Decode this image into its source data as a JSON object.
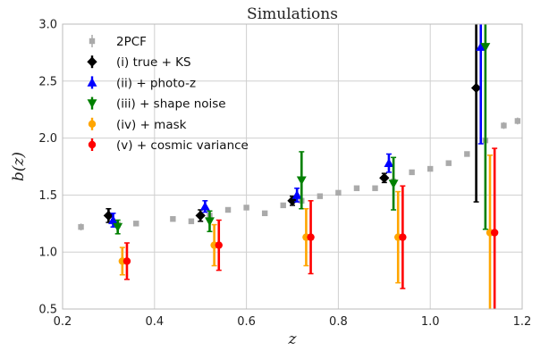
{
  "chart_data": {
    "type": "scatter",
    "title": "Simulations",
    "xlabel": "z",
    "ylabel": "b(z)",
    "xlim": [
      0.2,
      1.2
    ],
    "ylim": [
      0.5,
      3.0
    ],
    "xticks": [
      "0.2",
      "0.4",
      "0.6",
      "0.8",
      "1.0",
      "1.2"
    ],
    "yticks": [
      "0.5",
      "1.0",
      "1.5",
      "2.0",
      "2.5",
      "3.0"
    ],
    "grid": true,
    "legend_position": "top-left",
    "series": [
      {
        "name": "2PCF",
        "color": "#aaaaaa",
        "marker": "square",
        "points": [
          {
            "x": 0.24,
            "y": 1.22,
            "err": 0.03
          },
          {
            "x": 0.32,
            "y": 1.24,
            "err": 0.02
          },
          {
            "x": 0.36,
            "y": 1.25,
            "err": 0.02
          },
          {
            "x": 0.44,
            "y": 1.29,
            "err": 0.02
          },
          {
            "x": 0.48,
            "y": 1.27,
            "err": 0.02
          },
          {
            "x": 0.52,
            "y": 1.32,
            "err": 0.02
          },
          {
            "x": 0.56,
            "y": 1.37,
            "err": 0.02
          },
          {
            "x": 0.6,
            "y": 1.39,
            "err": 0.02
          },
          {
            "x": 0.64,
            "y": 1.34,
            "err": 0.02
          },
          {
            "x": 0.68,
            "y": 1.41,
            "err": 0.02
          },
          {
            "x": 0.72,
            "y": 1.45,
            "err": 0.02
          },
          {
            "x": 0.76,
            "y": 1.49,
            "err": 0.02
          },
          {
            "x": 0.8,
            "y": 1.52,
            "err": 0.02
          },
          {
            "x": 0.84,
            "y": 1.56,
            "err": 0.02
          },
          {
            "x": 0.88,
            "y": 1.56,
            "err": 0.02
          },
          {
            "x": 0.92,
            "y": 1.62,
            "err": 0.02
          },
          {
            "x": 0.96,
            "y": 1.7,
            "err": 0.02
          },
          {
            "x": 1.0,
            "y": 1.73,
            "err": 0.02
          },
          {
            "x": 1.04,
            "y": 1.78,
            "err": 0.02
          },
          {
            "x": 1.08,
            "y": 1.86,
            "err": 0.02
          },
          {
            "x": 1.12,
            "y": 1.98,
            "err": 0.03
          },
          {
            "x": 1.16,
            "y": 2.11,
            "err": 0.03
          },
          {
            "x": 1.19,
            "y": 2.15,
            "err": 0.03
          }
        ]
      },
      {
        "name": "(i) true + KS",
        "color": "#000000",
        "marker": "diamond",
        "points": [
          {
            "x": 0.3,
            "y": 1.32,
            "err": 0.06
          },
          {
            "x": 0.5,
            "y": 1.32,
            "err": 0.05
          },
          {
            "x": 0.7,
            "y": 1.45,
            "err": 0.04
          },
          {
            "x": 0.9,
            "y": 1.65,
            "err": 0.04
          },
          {
            "x": 1.1,
            "y": 2.44,
            "err": 1.0
          }
        ]
      },
      {
        "name": "(ii) + photo-z",
        "color": "#0000ff",
        "marker": "triangle-up",
        "points": [
          {
            "x": 0.31,
            "y": 1.28,
            "err": 0.06
          },
          {
            "x": 0.51,
            "y": 1.4,
            "err": 0.05
          },
          {
            "x": 0.71,
            "y": 1.5,
            "err": 0.06
          },
          {
            "x": 0.91,
            "y": 1.78,
            "err": 0.08
          },
          {
            "x": 1.11,
            "y": 2.8,
            "err": 0.85
          }
        ]
      },
      {
        "name": "(iii) + shape noise",
        "color": "#008000",
        "marker": "triangle-down",
        "points": [
          {
            "x": 0.32,
            "y": 1.22,
            "err": 0.06
          },
          {
            "x": 0.52,
            "y": 1.27,
            "err": 0.09
          },
          {
            "x": 0.72,
            "y": 1.63,
            "err": 0.25
          },
          {
            "x": 0.92,
            "y": 1.6,
            "err": 0.23
          },
          {
            "x": 1.12,
            "y": 2.8,
            "err": 1.6
          }
        ]
      },
      {
        "name": "(iv) + mask",
        "color": "#ffa500",
        "marker": "circle",
        "points": [
          {
            "x": 0.33,
            "y": 0.92,
            "err": 0.12
          },
          {
            "x": 0.53,
            "y": 1.06,
            "err": 0.18
          },
          {
            "x": 0.73,
            "y": 1.13,
            "err": 0.25
          },
          {
            "x": 0.93,
            "y": 1.13,
            "err": 0.4
          },
          {
            "x": 1.13,
            "y": 1.17,
            "err": 0.68
          }
        ]
      },
      {
        "name": "(v) + cosmic variance",
        "color": "#ff0000",
        "marker": "circle",
        "points": [
          {
            "x": 0.34,
            "y": 0.92,
            "err": 0.16
          },
          {
            "x": 0.54,
            "y": 1.06,
            "err": 0.22
          },
          {
            "x": 0.74,
            "y": 1.13,
            "err": 0.32
          },
          {
            "x": 0.94,
            "y": 1.13,
            "err": 0.45
          },
          {
            "x": 1.14,
            "y": 1.17,
            "err": 0.74
          }
        ]
      }
    ]
  }
}
